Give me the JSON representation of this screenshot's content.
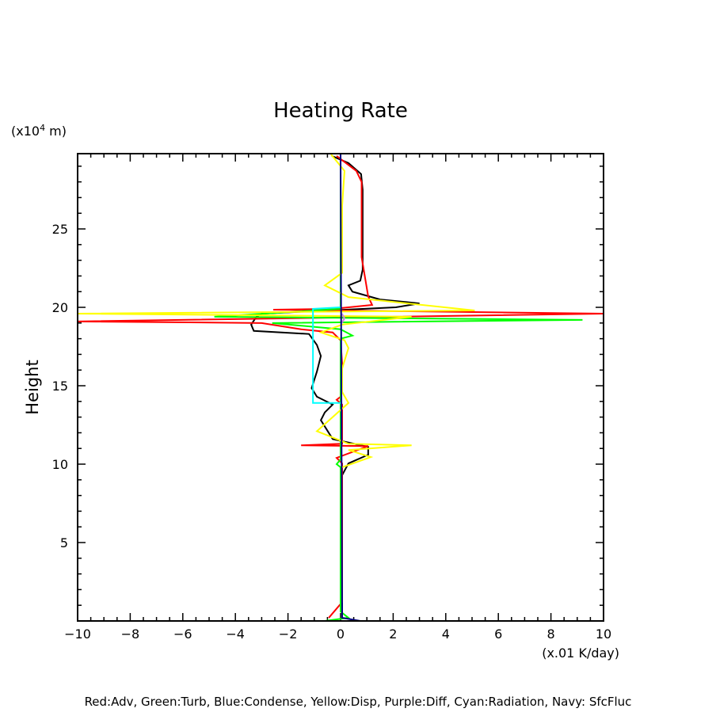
{
  "chart_data": {
    "type": "line",
    "title": "Heating Rate",
    "xlabel": "(x.01 K/day)",
    "ylabel": "Height",
    "yunit": "(x10",
    "yunit_exp": "4",
    "yunit_tail": " m)",
    "xlim": [
      -10,
      10
    ],
    "ylim": [
      0,
      29.8
    ],
    "xticks": [
      -10,
      -8,
      -6,
      -4,
      -2,
      0,
      2,
      4,
      6,
      8,
      10
    ],
    "xtick_labels": [
      "-10",
      "-8",
      "-6",
      "-4",
      "-2",
      "0",
      "2",
      "4",
      "6",
      "8",
      "10"
    ],
    "yticks": [
      5,
      10,
      15,
      20,
      25
    ],
    "ytick_labels": [
      "5",
      "10",
      "15",
      "20",
      "25"
    ],
    "legend": "Red:Adv, Green:Turb, Blue:Condense, Yellow:Disp, Purple:Diff, Cyan:Radiation, Navy: SfcFluc",
    "series": [
      {
        "name": "Total",
        "color": "#000000",
        "points": [
          [
            -0.33,
            29.65
          ],
          [
            0.3,
            29.2
          ],
          [
            0.78,
            28.5
          ],
          [
            0.84,
            27.5
          ],
          [
            0.84,
            22.4
          ],
          [
            0.75,
            21.7
          ],
          [
            0.3,
            21.4
          ],
          [
            0.45,
            21.0
          ],
          [
            1.5,
            20.5
          ],
          [
            3.0,
            20.25
          ],
          [
            2.1,
            20.0
          ],
          [
            -3.0,
            19.6
          ],
          [
            -3.2,
            19.4
          ],
          [
            -3.4,
            18.9
          ],
          [
            -3.3,
            18.5
          ],
          [
            -1.2,
            18.3
          ],
          [
            -0.9,
            17.6
          ],
          [
            -0.75,
            16.9
          ],
          [
            -0.9,
            15.9
          ],
          [
            -1.1,
            14.85
          ],
          [
            -0.9,
            14.3
          ],
          [
            -0.3,
            13.8
          ],
          [
            -0.6,
            13.3
          ],
          [
            -0.75,
            12.8
          ],
          [
            -0.3,
            11.6
          ],
          [
            1.05,
            11.1
          ],
          [
            1.05,
            10.6
          ],
          [
            0.3,
            10.05
          ],
          [
            0.06,
            9.3
          ],
          [
            0.06,
            0.2
          ]
        ]
      },
      {
        "name": "Adv",
        "color": "#ff0000",
        "points": [
          [
            -0.15,
            29.65
          ],
          [
            0.6,
            28.7
          ],
          [
            0.8,
            28.0
          ],
          [
            0.8,
            23.2
          ],
          [
            0.9,
            22.2
          ],
          [
            1.05,
            20.7
          ],
          [
            1.2,
            20.15
          ],
          [
            -0.3,
            19.9
          ],
          [
            -2.56,
            19.85
          ],
          [
            10,
            19.6
          ],
          [
            -10,
            19.1
          ],
          [
            -3,
            19.0
          ],
          [
            -1.5,
            18.6
          ],
          [
            -0.3,
            18.4
          ],
          [
            0,
            17.9
          ],
          [
            0.06,
            16.4
          ],
          [
            0,
            14.3
          ],
          [
            -0.15,
            14.1
          ],
          [
            0.06,
            13.8
          ],
          [
            0.06,
            11.3
          ],
          [
            -1.5,
            11.2
          ],
          [
            1.05,
            11.15
          ],
          [
            -0.15,
            10.4
          ],
          [
            0.06,
            10.05
          ],
          [
            0.06,
            1.2
          ],
          [
            -0.45,
            0.2
          ]
        ]
      },
      {
        "name": "Turb",
        "color": "#00ff00",
        "points": [
          [
            0,
            29.7
          ],
          [
            0,
            19.9
          ],
          [
            -4.8,
            19.4
          ],
          [
            9.2,
            19.2
          ],
          [
            -2.6,
            19.0
          ],
          [
            0,
            18.6
          ],
          [
            0.45,
            18.2
          ],
          [
            0,
            18.0
          ],
          [
            0,
            10.3
          ],
          [
            -0.15,
            10.0
          ],
          [
            0,
            9.8
          ],
          [
            0,
            0.6
          ],
          [
            0.3,
            0.2
          ],
          [
            -0.6,
            0
          ]
        ]
      },
      {
        "name": "Disp",
        "color": "#ffff00",
        "points": [
          [
            -0.36,
            29.75
          ],
          [
            0.15,
            28.7
          ],
          [
            0.06,
            26.5
          ],
          [
            0.06,
            22.2
          ],
          [
            -0.6,
            21.4
          ],
          [
            0.3,
            20.65
          ],
          [
            5.1,
            19.8
          ],
          [
            -10,
            19.6
          ],
          [
            2.7,
            19.4
          ],
          [
            0.06,
            18.9
          ],
          [
            -0.75,
            18.4
          ],
          [
            0.15,
            17.9
          ],
          [
            0.3,
            17.4
          ],
          [
            0.06,
            16.1
          ],
          [
            0.06,
            14.6
          ],
          [
            0.3,
            13.9
          ],
          [
            -0.9,
            12.1
          ],
          [
            0.3,
            11.3
          ],
          [
            2.7,
            11.2
          ],
          [
            0.3,
            10.9
          ],
          [
            1.15,
            10.45
          ],
          [
            0.06,
            9.8
          ]
        ]
      },
      {
        "name": "Diff",
        "color": "#cc88dd",
        "points": [
          [
            0.05,
            19.6
          ],
          [
            0.15,
            19.3
          ],
          [
            0.05,
            19.0
          ]
        ]
      },
      {
        "name": "Radiation",
        "color": "#00ffff",
        "points": [
          [
            0,
            20.0
          ],
          [
            -1.05,
            19.9
          ],
          [
            -1.05,
            13.9
          ],
          [
            0,
            13.9
          ]
        ]
      },
      {
        "name": "SfcFluc",
        "color": "#000080",
        "points": [
          [
            0,
            29.8
          ],
          [
            0.06,
            0.2
          ],
          [
            0.75,
            0
          ]
        ]
      }
    ]
  }
}
